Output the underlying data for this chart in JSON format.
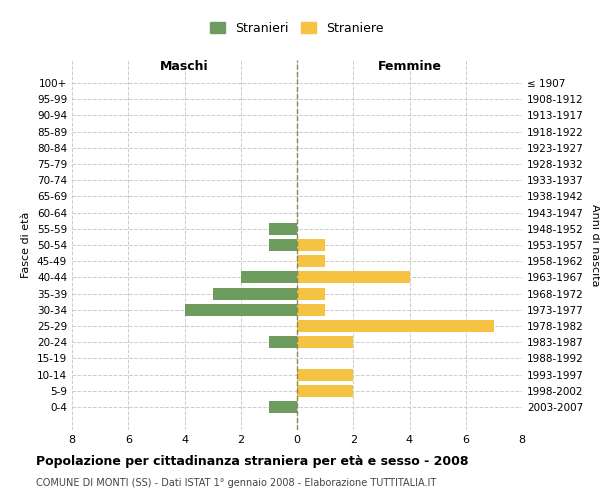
{
  "age_groups": [
    "100+",
    "95-99",
    "90-94",
    "85-89",
    "80-84",
    "75-79",
    "70-74",
    "65-69",
    "60-64",
    "55-59",
    "50-54",
    "45-49",
    "40-44",
    "35-39",
    "30-34",
    "25-29",
    "20-24",
    "15-19",
    "10-14",
    "5-9",
    "0-4"
  ],
  "birth_years": [
    "≤ 1907",
    "1908-1912",
    "1913-1917",
    "1918-1922",
    "1923-1927",
    "1928-1932",
    "1933-1937",
    "1938-1942",
    "1943-1947",
    "1948-1952",
    "1953-1957",
    "1958-1962",
    "1963-1967",
    "1968-1972",
    "1973-1977",
    "1978-1982",
    "1983-1987",
    "1988-1992",
    "1993-1997",
    "1998-2002",
    "2003-2007"
  ],
  "maschi": [
    0,
    0,
    0,
    0,
    0,
    0,
    0,
    0,
    0,
    1,
    1,
    0,
    2,
    3,
    4,
    0,
    1,
    0,
    0,
    0,
    1
  ],
  "femmine": [
    0,
    0,
    0,
    0,
    0,
    0,
    0,
    0,
    0,
    0,
    1,
    1,
    4,
    1,
    1,
    7,
    2,
    0,
    2,
    2,
    0
  ],
  "color_maschi": "#6e9b5e",
  "color_femmine": "#f5c242",
  "title": "Popolazione per cittadinanza straniera per età e sesso - 2008",
  "subtitle": "COMUNE DI MONTI (SS) - Dati ISTAT 1° gennaio 2008 - Elaborazione TUTTITALIA.IT",
  "ylabel_left": "Fasce di età",
  "ylabel_right": "Anni di nascita",
  "xlabel_left": "Maschi",
  "xlabel_right": "Femmine",
  "legend_stranieri": "Stranieri",
  "legend_straniere": "Straniere",
  "xlim": 8,
  "background_color": "#ffffff",
  "grid_color": "#cccccc"
}
